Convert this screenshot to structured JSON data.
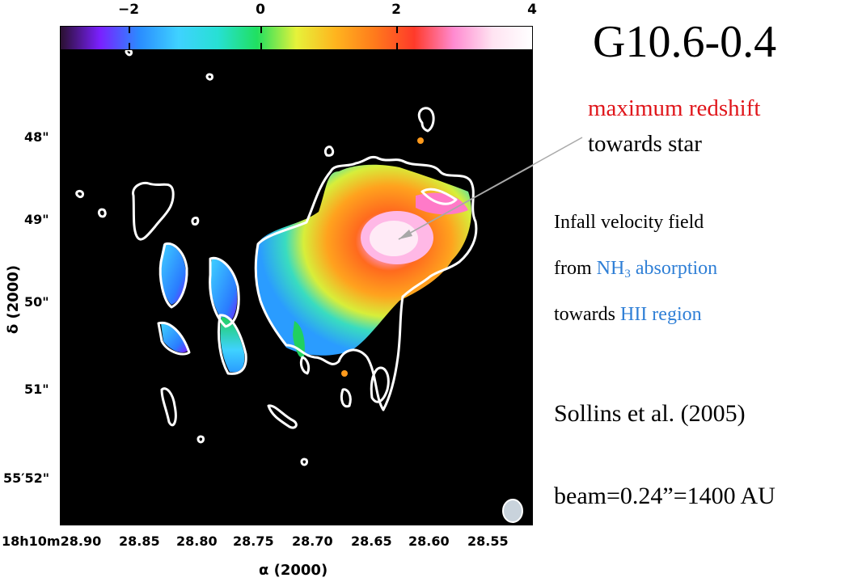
{
  "colorbar": {
    "ticks": [
      "−2",
      "0",
      "2",
      "4"
    ],
    "colors": [
      "#2a1030",
      "#7a20ff",
      "#2a8cff",
      "#3fd2ff",
      "#27e0d4",
      "#20e060",
      "#e6f23a",
      "#ffb41e",
      "#ff7a1c",
      "#ff3a2a",
      "#ff8ad0",
      "#ffe4f2",
      "#ffffff"
    ]
  },
  "axes": {
    "dec_ticks": [
      "48\"",
      "49\"",
      "50\"",
      "51\"",
      "55′52\""
    ],
    "ra_ticks": [
      "18h10m28.90",
      "28.85",
      "28.80",
      "28.75",
      "28.70",
      "28.65",
      "28.60",
      "28.55"
    ],
    "xlabel": "α (2000)",
    "ylabel": "δ (2000)"
  },
  "title": "G10.6-0.4",
  "annotation": {
    "line1": "maximum redshift",
    "line2": "towards star",
    "line1_color": "#e0161b"
  },
  "info": {
    "line1": "Infall velocity field",
    "line2_pre": "from ",
    "line2_blue": "NH",
    "line2_sub": "3",
    "line2_blue_rest": " absorption",
    "line3_pre": "towards ",
    "line3_blue": "HII region",
    "accent": "#2f7fd6"
  },
  "citation": "Sollins  et al. (2005)",
  "beam": "beam=0.24”=1400 AU"
}
